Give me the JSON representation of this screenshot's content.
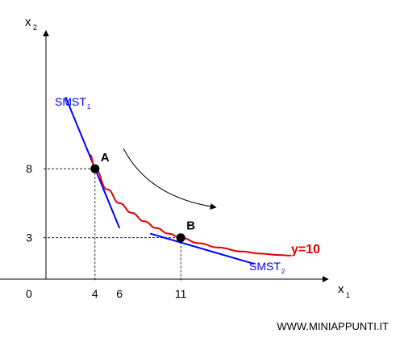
{
  "chart_data": {
    "type": "line",
    "axes": {
      "x_label": "x",
      "x_label_subscript": "1",
      "y_label": "x",
      "y_label_subscript": "2",
      "origin_label": "0",
      "x_ticks": [
        4,
        6,
        11
      ],
      "y_ticks": [
        3,
        8
      ],
      "xlim": [
        0,
        24
      ],
      "ylim": [
        0,
        22
      ]
    },
    "curve": {
      "label": "y=10",
      "color": "#e00000",
      "points": [
        [
          3.6,
          9.0
        ],
        [
          4.0,
          8.0
        ],
        [
          5.0,
          6.5
        ],
        [
          6.0,
          5.5
        ],
        [
          7.0,
          4.8
        ],
        [
          8.0,
          4.2
        ],
        [
          9.0,
          3.7
        ],
        [
          10.0,
          3.3
        ],
        [
          11.0,
          3.0
        ],
        [
          12.5,
          2.6
        ],
        [
          14.0,
          2.3
        ],
        [
          16.0,
          2.0
        ],
        [
          17.5,
          1.85
        ],
        [
          19.0,
          1.75
        ],
        [
          20.0,
          1.7
        ]
      ]
    },
    "tangents": [
      {
        "label": "SMST",
        "label_subscript": "1",
        "color": "#0000ff",
        "from": [
          1.6,
          13.2
        ],
        "to": [
          6.0,
          3.7
        ]
      },
      {
        "label": "SMST",
        "label_subscript": "2",
        "color": "#0000ff",
        "from": [
          8.5,
          3.3
        ],
        "to": [
          17.0,
          1.1
        ]
      }
    ],
    "points": [
      {
        "label": "A",
        "x": 4,
        "y": 8
      },
      {
        "label": "B",
        "x": 11,
        "y": 3
      }
    ]
  },
  "watermark": "WWW.MINIAPPUNTI.IT"
}
